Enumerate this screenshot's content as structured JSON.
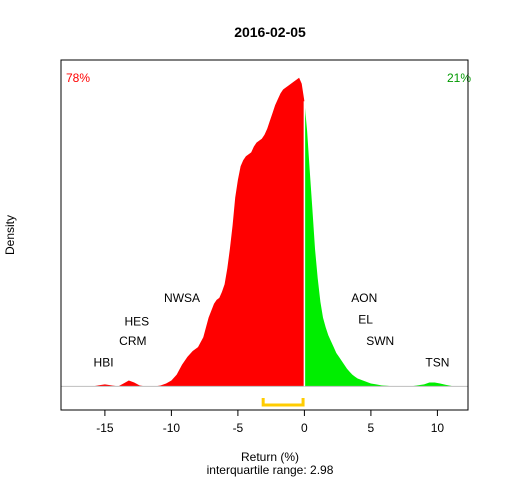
{
  "chart_data": {
    "type": "area",
    "title": "2016-02-05",
    "xlabel": "Return (%)",
    "ylabel": "Density",
    "subtitle": "interquartile range: 2.98",
    "xlim": [
      -18.3,
      12.3
    ],
    "ylim": [
      -0.012,
      0.166
    ],
    "x_ticks": [
      -15,
      -10,
      -5,
      0,
      5,
      10
    ],
    "grid": false,
    "legend": "none",
    "split_at": 0,
    "percent_negative": "78%",
    "percent_positive": "21%",
    "colors": {
      "negative": "#ff0000",
      "positive": "#00ee00",
      "iqr_bracket": "#ffcc00",
      "baseline": "#bebebe"
    },
    "iqr": {
      "low": -3.1,
      "high": -0.1
    },
    "density": {
      "x": [
        -15.9,
        -15.5,
        -15.0,
        -14.5,
        -14.0,
        -13.6,
        -13.2,
        -12.8,
        -12.4,
        -12.0,
        -11.6,
        -11.2,
        -10.8,
        -10.4,
        -10.0,
        -9.6,
        -9.2,
        -8.8,
        -8.4,
        -8.0,
        -7.6,
        -7.2,
        -6.8,
        -6.6,
        -6.4,
        -6.2,
        -6.0,
        -5.8,
        -5.6,
        -5.4,
        -5.2,
        -5.0,
        -4.8,
        -4.6,
        -4.4,
        -4.2,
        -4.0,
        -3.8,
        -3.6,
        -3.4,
        -3.2,
        -3.0,
        -2.8,
        -2.6,
        -2.4,
        -2.2,
        -2.0,
        -1.8,
        -1.6,
        -1.4,
        -1.2,
        -1.0,
        -0.8,
        -0.6,
        -0.4,
        -0.2,
        0.0,
        0.2,
        0.4,
        0.6,
        0.8,
        1.0,
        1.2,
        1.4,
        1.6,
        1.8,
        2.0,
        2.2,
        2.4,
        2.6,
        2.8,
        3.0,
        3.2,
        3.4,
        3.6,
        3.8,
        4.0,
        4.2,
        4.4,
        4.6,
        4.8,
        5.0,
        5.4,
        5.8,
        6.2,
        6.6,
        7.0,
        7.5,
        8.0,
        8.5,
        9.0,
        9.4,
        9.8,
        10.2,
        10.6,
        11.0,
        11.2
      ],
      "y": [
        0.0,
        0.0005,
        0.001,
        0.0005,
        0.0,
        0.0015,
        0.003,
        0.002,
        0.0005,
        0.0,
        0.0,
        0.0,
        0.0005,
        0.0015,
        0.003,
        0.006,
        0.011,
        0.015,
        0.018,
        0.02,
        0.025,
        0.035,
        0.042,
        0.044,
        0.045,
        0.048,
        0.052,
        0.06,
        0.07,
        0.082,
        0.096,
        0.105,
        0.112,
        0.115,
        0.117,
        0.118,
        0.119,
        0.122,
        0.124,
        0.125,
        0.126,
        0.128,
        0.131,
        0.135,
        0.139,
        0.143,
        0.146,
        0.149,
        0.151,
        0.152,
        0.153,
        0.154,
        0.155,
        0.156,
        0.157,
        0.154,
        0.145,
        0.13,
        0.11,
        0.09,
        0.07,
        0.055,
        0.043,
        0.035,
        0.03,
        0.026,
        0.023,
        0.02,
        0.017,
        0.015,
        0.013,
        0.011,
        0.009,
        0.0075,
        0.006,
        0.005,
        0.004,
        0.0035,
        0.003,
        0.0025,
        0.002,
        0.0015,
        0.001,
        0.0005,
        0.0003,
        0.0001,
        0.0,
        0.0,
        0.0,
        0.0005,
        0.001,
        0.002,
        0.002,
        0.0015,
        0.0008,
        0.0003,
        0.0
      ]
    },
    "annotations": [
      {
        "label": "HBI",
        "x": -15.1,
        "y": 0.01
      },
      {
        "label": "CRM",
        "x": -12.9,
        "y": 0.021
      },
      {
        "label": "HES",
        "x": -12.6,
        "y": 0.031
      },
      {
        "label": "NWSA",
        "x": -9.2,
        "y": 0.043
      },
      {
        "label": "AON",
        "x": 4.5,
        "y": 0.043
      },
      {
        "label": "EL",
        "x": 4.6,
        "y": 0.032
      },
      {
        "label": "SWN",
        "x": 5.7,
        "y": 0.021
      },
      {
        "label": "TSN",
        "x": 10.0,
        "y": 0.01
      }
    ]
  }
}
